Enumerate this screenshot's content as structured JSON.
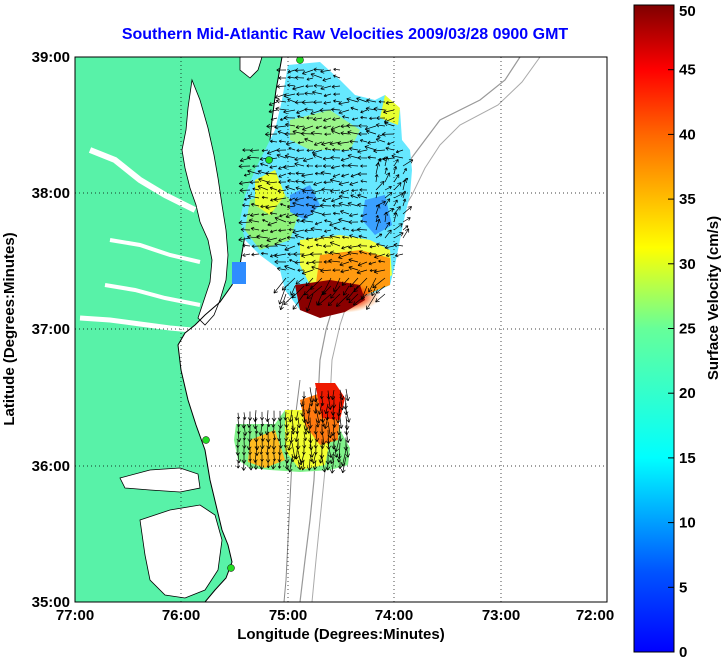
{
  "title": "Southern Mid-Atlantic Raw Velocities 2009/03/28 0900 GMT",
  "map": {
    "xlabel": "Longitude (Degrees:Minutes)",
    "ylabel": "Latitude (Degrees:Minutes)",
    "x_ticks": [
      "77:00",
      "76:00",
      "75:00",
      "74:00",
      "73:00",
      "72:00"
    ],
    "y_ticks": [
      "39:00",
      "38:00",
      "37:00",
      "36:00",
      "35:00"
    ],
    "lon_range": [
      -77,
      -72
    ],
    "lat_range": [
      35,
      39
    ],
    "grid": "dotted",
    "land_color": "#58f2a8",
    "ocean_color": "#ffffff",
    "station_color": "#22dd22"
  },
  "colorbar": {
    "label": "Surface Velocity (cm/s)",
    "ticks": [
      "0",
      "5",
      "10",
      "15",
      "20",
      "25",
      "30",
      "35",
      "40",
      "45",
      "50"
    ],
    "range": [
      0,
      50
    ],
    "colormap": "jet"
  }
}
